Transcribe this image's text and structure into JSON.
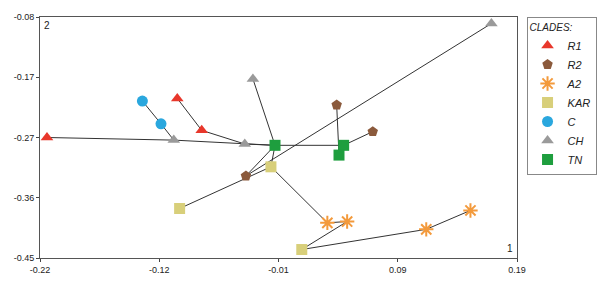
{
  "chart_data": {
    "type": "scatter",
    "xlabel": "1",
    "ylabel": "2",
    "legend_title": "CLADES:",
    "legend": "right",
    "grid": false,
    "xlim": [
      -0.22,
      0.19
    ],
    "xticks": [
      -0.22,
      {
        "value": -0.1175,
        "label": "-0.12"
      },
      {
        "value": -0.015,
        "label": "-0.01"
      },
      {
        "value": 0.0875,
        "label": "0.09"
      },
      0.19
    ],
    "ylim": [
      -0.45,
      -0.08
    ],
    "yticks": [
      -0.45,
      {
        "value": -0.3575,
        "label": "-0.36"
      },
      {
        "value": -0.265,
        "label": "-0.27"
      },
      {
        "value": -0.1725,
        "label": "-0.17"
      },
      -0.08
    ],
    "series": [
      {
        "name": "R1",
        "color": "#e8372b",
        "marker": "triangle-up",
        "x": [
          -0.214,
          -0.102,
          -0.081
        ],
        "y": [
          -0.265,
          -0.205,
          -0.254
        ]
      },
      {
        "name": "R2",
        "color": "#8b5a3c",
        "marker": "pentagon",
        "x": [
          0.035,
          0.066,
          -0.043
        ],
        "y": [
          -0.215,
          -0.256,
          -0.324
        ]
      },
      {
        "name": "A2",
        "color": "#f39a3c",
        "marker": "asterisk-open",
        "x": [
          0.027,
          0.044,
          0.112,
          0.15
        ],
        "y": [
          -0.396,
          -0.394,
          -0.406,
          -0.377
        ]
      },
      {
        "name": "KAR",
        "color": "#d8cf7a",
        "marker": "square",
        "x": [
          -0.0215,
          -0.1,
          0.005
        ],
        "y": [
          -0.31,
          -0.374,
          -0.437
        ]
      },
      {
        "name": "C",
        "color": "#2aa7de",
        "marker": "circle",
        "x": [
          -0.132,
          -0.116
        ],
        "y": [
          -0.209,
          -0.244
        ]
      },
      {
        "name": "CH",
        "color": "#9a9a9a",
        "marker": "triangle-up",
        "x": [
          0.168,
          -0.037,
          -0.044,
          -0.105
        ],
        "y": [
          -0.09,
          -0.175,
          -0.275,
          -0.269
        ]
      },
      {
        "name": "TN",
        "color": "#1e9e3e",
        "marker": "square",
        "x": [
          -0.018,
          0.041,
          0.037
        ],
        "y": [
          -0.277,
          -0.277,
          -0.292
        ]
      }
    ],
    "edges": [
      [
        [
          0,
          0
        ],
        [
          5,
          3
        ]
      ],
      [
        [
          5,
          3
        ],
        [
          6,
          0
        ]
      ],
      [
        [
          0,
          1
        ],
        [
          0,
          2
        ]
      ],
      [
        [
          0,
          2
        ],
        [
          5,
          2
        ]
      ],
      [
        [
          5,
          2
        ],
        [
          6,
          0
        ]
      ],
      [
        [
          4,
          0
        ],
        [
          4,
          1
        ]
      ],
      [
        [
          4,
          1
        ],
        [
          5,
          3
        ]
      ],
      [
        [
          5,
          1
        ],
        [
          6,
          0
        ]
      ],
      [
        [
          6,
          0
        ],
        [
          6,
          1
        ]
      ],
      [
        [
          6,
          1
        ],
        [
          1,
          1
        ]
      ],
      [
        [
          1,
          2
        ],
        [
          5,
          0
        ]
      ],
      [
        [
          1,
          2
        ],
        [
          6,
          0
        ]
      ],
      [
        [
          1,
          0
        ],
        [
          6,
          2
        ]
      ],
      [
        [
          3,
          1
        ],
        [
          3,
          0
        ]
      ],
      [
        [
          3,
          0
        ],
        [
          6,
          0
        ]
      ],
      [
        [
          3,
          0
        ],
        [
          2,
          0
        ]
      ],
      [
        [
          2,
          0
        ],
        [
          2,
          1
        ]
      ],
      [
        [
          3,
          2
        ],
        [
          2,
          1
        ]
      ],
      [
        [
          3,
          2
        ],
        [
          2,
          2
        ]
      ],
      [
        [
          2,
          2
        ],
        [
          2,
          3
        ]
      ]
    ]
  }
}
